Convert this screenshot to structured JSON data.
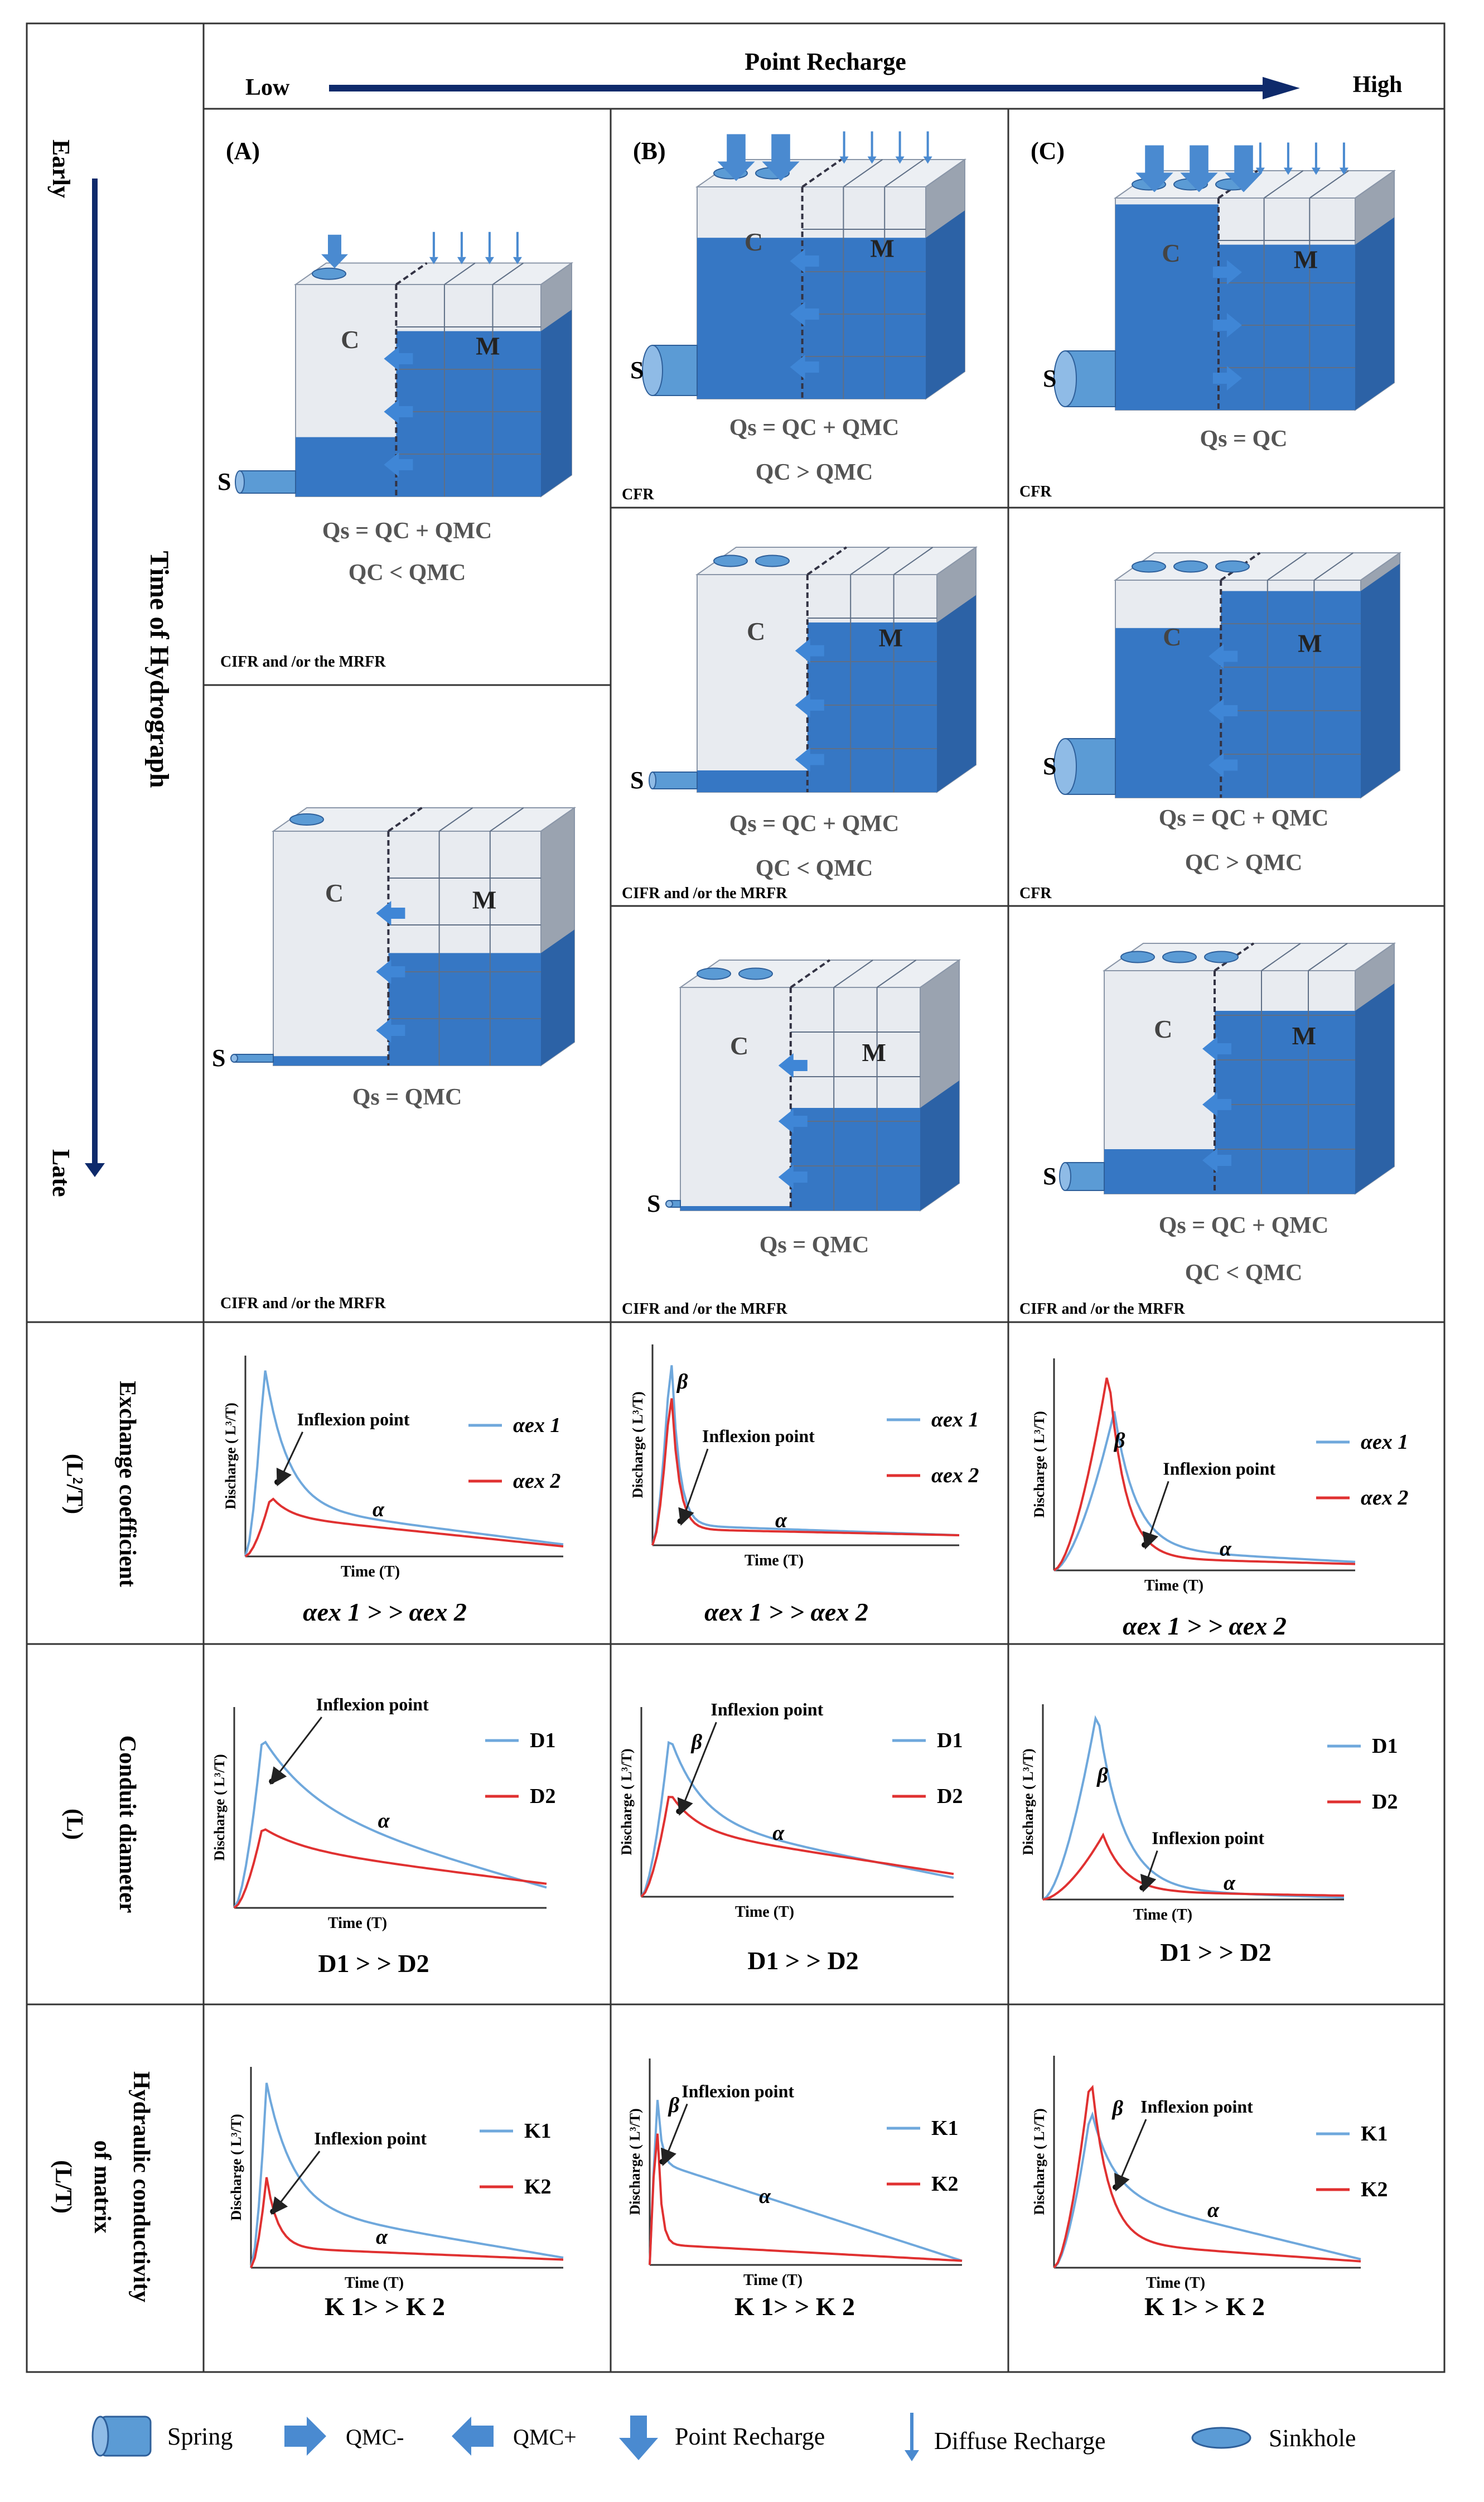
{
  "header": {
    "title": "Point Recharge",
    "low": "Low",
    "high": "High",
    "early": "Early",
    "late": "Late",
    "time_axis": "Time of Hydrograph"
  },
  "labels": {
    "conduit": "C",
    "matrix": "M",
    "spring": "S",
    "panel_a": "(A)",
    "panel_b": "(B)",
    "panel_c": "(C)"
  },
  "panels": {
    "a_early": {
      "eq1": "Qs = QC + QMC",
      "eq2": "QC < QMC",
      "note": "CIFR and /or the MRFR"
    },
    "a_late": {
      "eq1": "Qs = QMC",
      "note": "CIFR and /or the MRFR"
    },
    "b_early": {
      "eq1": "Qs = QC + QMC",
      "eq2": "QC > QMC",
      "note": "CFR"
    },
    "b_mid": {
      "eq1": "Qs = QC + QMC",
      "eq2": "QC < QMC",
      "note": "CIFR and /or the MRFR"
    },
    "b_late": {
      "eq1": "Qs = QMC",
      "note": "CIFR and /or the MRFR"
    },
    "c_early": {
      "eq1": "Qs = QC",
      "note": "CFR"
    },
    "c_mid": {
      "eq1": "Qs = QC + QMC",
      "eq2": "QC > QMC",
      "note": "CFR"
    },
    "c_late": {
      "eq1": "Qs = QC + QMC",
      "eq2": "QC < QMC",
      "note": "CIFR and /or the MRFR"
    }
  },
  "rows": {
    "exchange": {
      "title": "Exchange coefficient",
      "unit": "(L²/T)"
    },
    "diameter": {
      "title": "Conduit diameter",
      "unit": "(L)"
    },
    "conductivity": {
      "title": "Hydraulic conductivity",
      "sub": "of matrix",
      "unit": "(L/T)"
    }
  },
  "chart_common": {
    "ylabel": "Discharge ( L³/T)",
    "xlabel": "Time (T)",
    "inflexion": "Inflexion point",
    "alpha": "α",
    "beta": "β"
  },
  "charts": {
    "exchange": {
      "legend1": "αex 1",
      "legend2": "αex 2",
      "relation": "αex 1 > > αex 2"
    },
    "diameter": {
      "legend1": "D1",
      "legend2": "D2",
      "relation": "D1 > > D2"
    },
    "conductivity": {
      "legend1": "K1",
      "legend2": "K2",
      "relation": "K 1> > K 2"
    }
  },
  "legend": {
    "spring": "Spring",
    "qmc_minus": "QMC-",
    "qmc_plus": "QMC+",
    "point": "Point Recharge",
    "diffuse": "Diffuse Recharge",
    "sinkhole": "Sinkhole"
  },
  "colors": {
    "blue": "#2e74c6",
    "light": "#a9c8ea",
    "curve1": "#6fa8dc",
    "curve2": "#e03131",
    "navy": "#0e2a6b"
  }
}
